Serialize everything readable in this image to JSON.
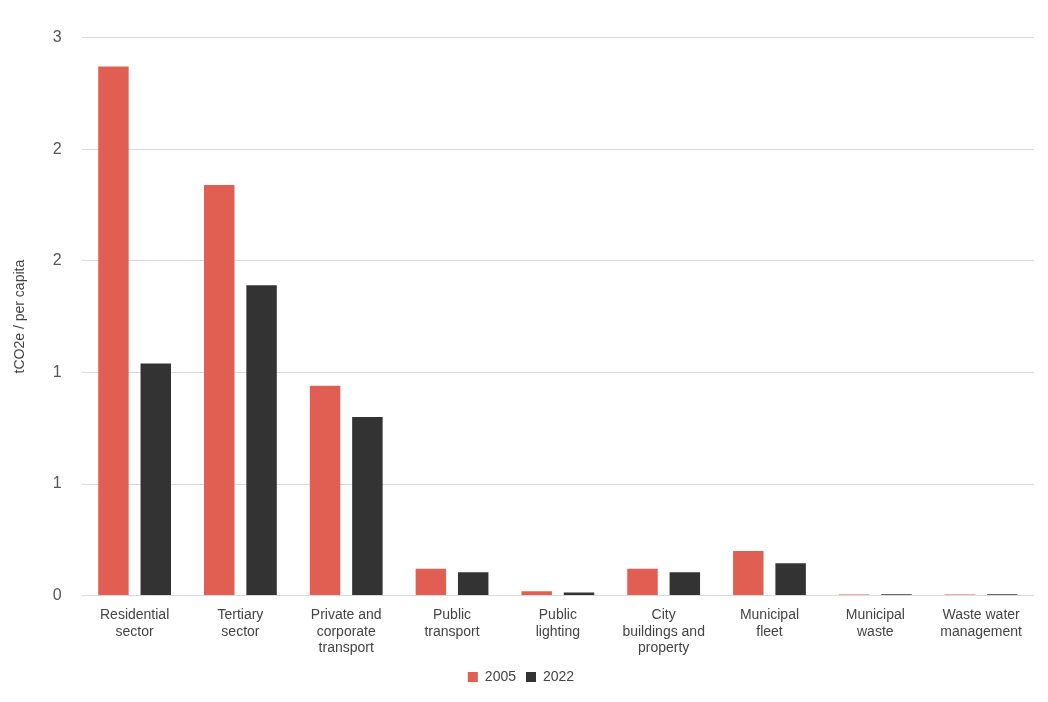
{
  "chart_data": {
    "type": "bar",
    "ylabel": "tCO2e / per capita",
    "categories": [
      "Residential sector",
      "Tertiary sector",
      "Private and corporate transport",
      "Public transport",
      "Public lighting",
      "City buildings and property",
      "Municipal fleet",
      "Municipal waste",
      "Waste water management"
    ],
    "series": [
      {
        "name": "2005",
        "color": "#e05f52",
        "values": [
          2.37,
          1.84,
          0.94,
          0.12,
          0.02,
          0.12,
          0.2,
          0.005,
          0.005
        ]
      },
      {
        "name": "2022",
        "color": "#333333",
        "values": [
          1.04,
          1.39,
          0.8,
          0.105,
          0.014,
          0.105,
          0.145,
          0.006,
          0.006
        ]
      }
    ],
    "ylim": [
      0,
      2.5
    ],
    "yticks": [
      0,
      {
        "value": 0.5,
        "label": "1"
      },
      1,
      {
        "value": 1.5,
        "label": "2"
      },
      2,
      {
        "value": 2.5,
        "label": "3"
      }
    ],
    "grid": "y",
    "legend": "bottom"
  }
}
